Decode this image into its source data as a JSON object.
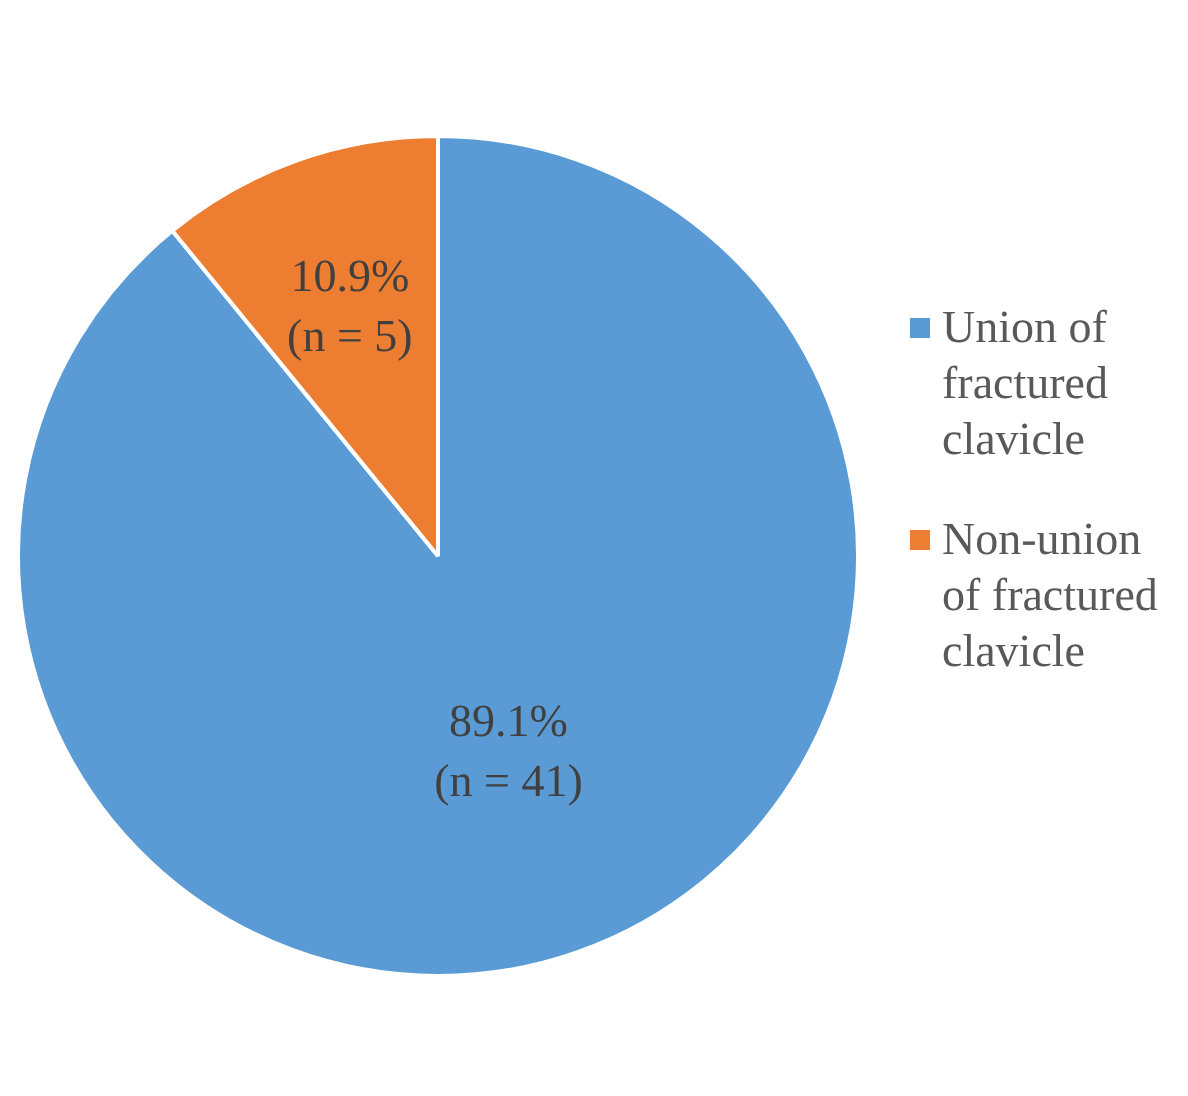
{
  "chart_data": {
    "type": "pie",
    "categories": [
      "Union of fractured clavicle",
      "Non-union of fractured clavicle"
    ],
    "values": [
      89.1,
      10.9
    ],
    "colors": [
      "#5b9bd5",
      "#ed7d31"
    ],
    "value_labels": [
      "89.1%\n(n = 41)",
      "10.9%\n(n = 5)"
    ],
    "legend": "right"
  }
}
